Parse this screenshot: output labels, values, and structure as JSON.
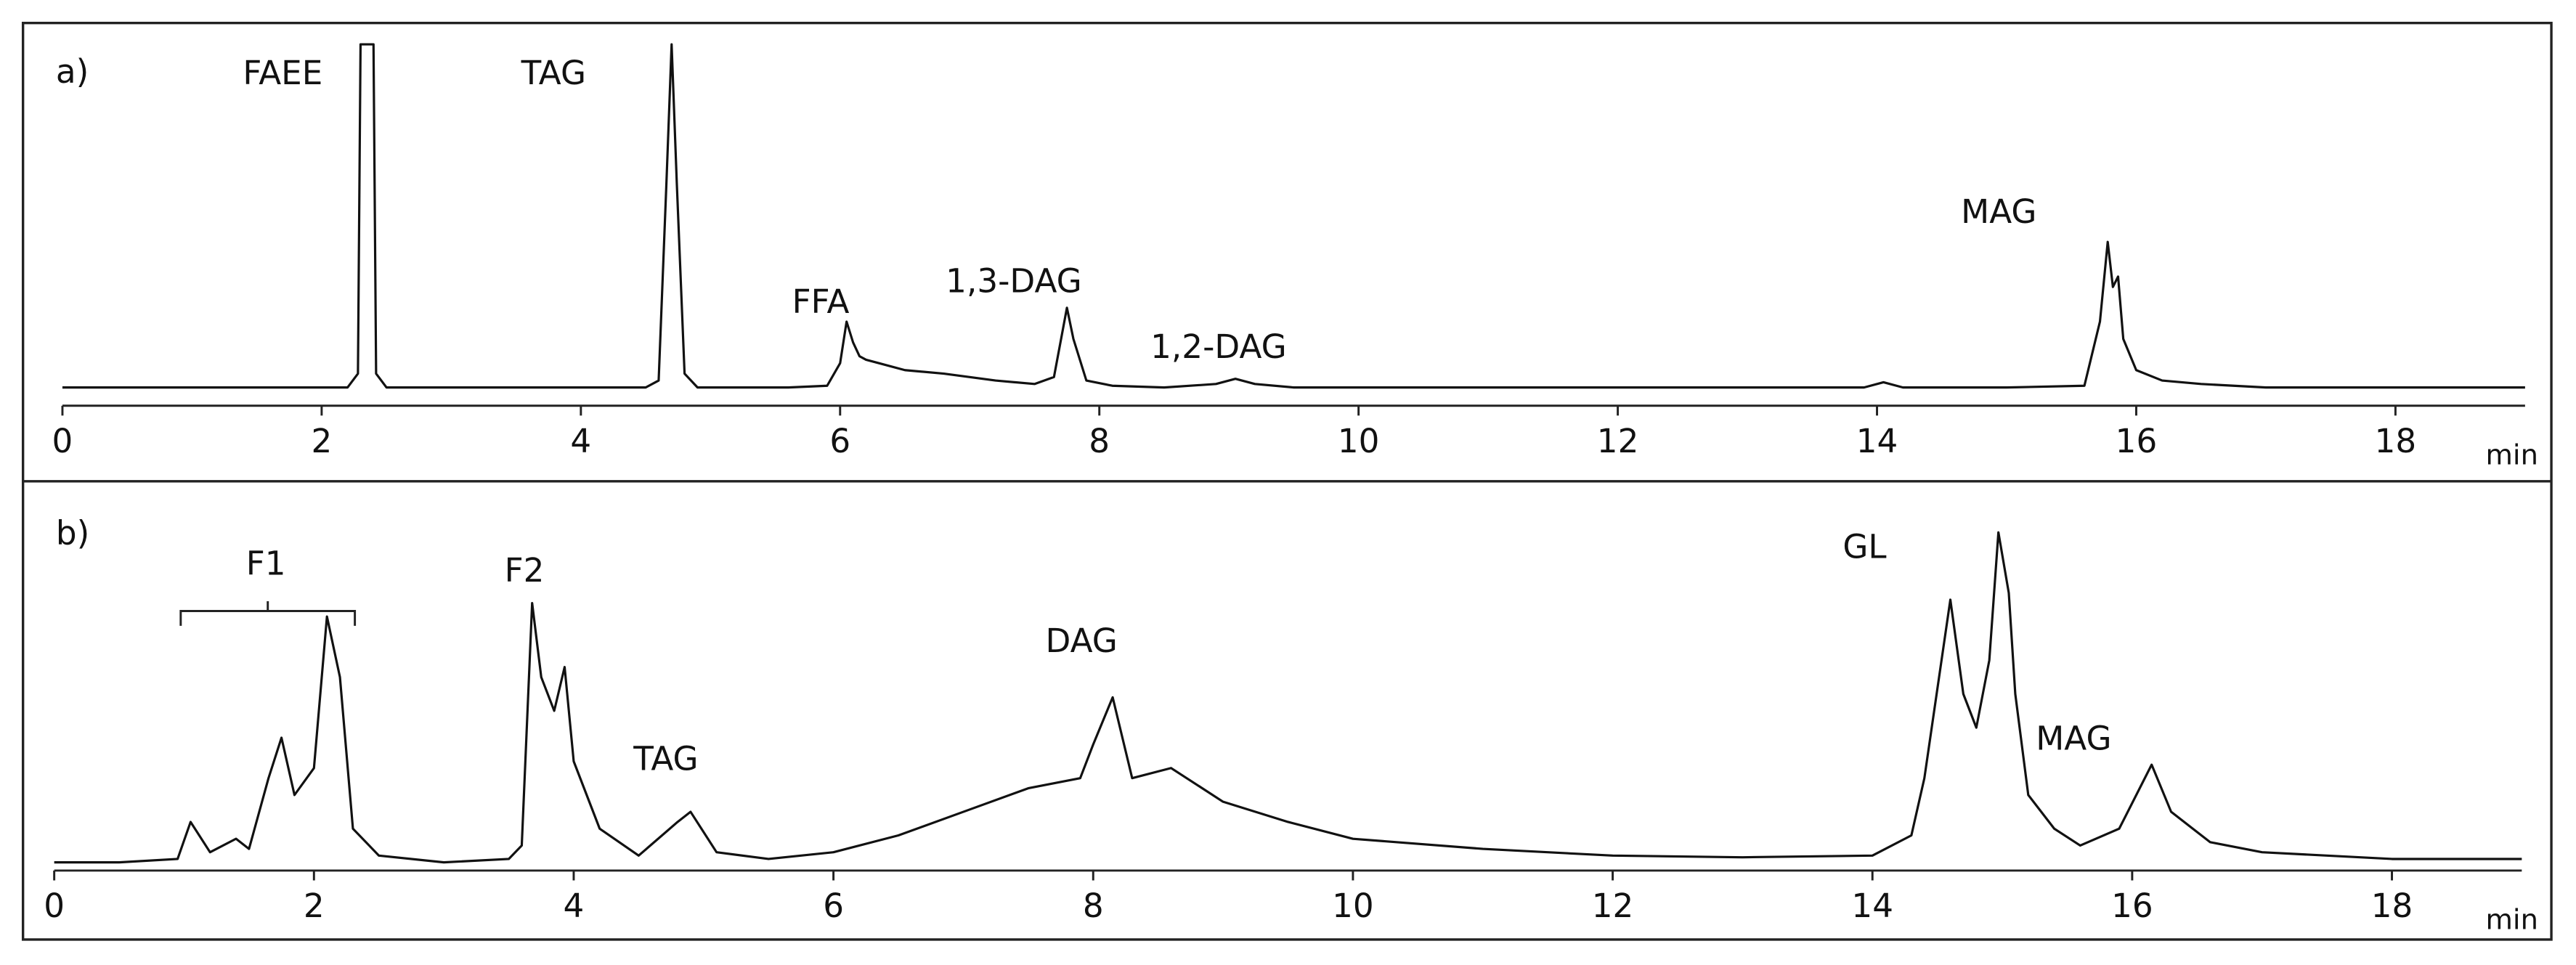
{
  "chart_data": [
    {
      "type": "line",
      "panel_label": "a)",
      "xlabel": "min",
      "xlim": [
        0,
        19
      ],
      "ylim": [
        0,
        100
      ],
      "xticks": [
        0,
        2,
        4,
        6,
        8,
        10,
        12,
        14,
        16,
        18
      ],
      "x": [
        0,
        0.5,
        1,
        1.5,
        2,
        2.2,
        2.28,
        2.3,
        2.4,
        2.42,
        2.5,
        2.7,
        3,
        3.5,
        4,
        4.5,
        4.6,
        4.66,
        4.7,
        4.74,
        4.8,
        4.9,
        5.2,
        5.6,
        5.9,
        6.0,
        6.05,
        6.1,
        6.15,
        6.2,
        6.3,
        6.5,
        6.8,
        7.2,
        7.5,
        7.65,
        7.72,
        7.75,
        7.8,
        7.9,
        8.1,
        8.5,
        8.9,
        9.05,
        9.2,
        9.5,
        10,
        11,
        12,
        13,
        13.9,
        14.05,
        14.2,
        15,
        15.6,
        15.72,
        15.78,
        15.82,
        15.86,
        15.9,
        16.0,
        16.2,
        16.5,
        17,
        18,
        19
      ],
      "values": [
        1,
        1,
        1,
        1,
        1,
        1,
        5,
        100,
        100,
        5,
        1,
        1,
        1,
        1,
        1,
        1,
        3,
        60,
        100,
        60,
        5,
        1,
        1,
        1,
        1.5,
        8,
        20,
        14,
        10,
        9,
        8,
        6,
        5,
        3,
        2,
        4,
        18,
        24,
        15,
        3,
        1.5,
        1,
        2,
        3.5,
        2,
        1,
        1,
        1,
        1,
        1,
        1,
        2.5,
        1,
        1,
        1.5,
        20,
        43,
        30,
        33,
        15,
        6,
        3,
        2,
        1,
        1,
        1
      ],
      "color": "#111111",
      "annotations": [
        {
          "text": "FAEE",
          "x": 1.7,
          "y": 91
        },
        {
          "text": "TAG",
          "x": 3.79,
          "y": 91
        },
        {
          "text": "FFA",
          "x": 5.85,
          "y": 25
        },
        {
          "text": "1,3-DAG",
          "x": 7.34,
          "y": 31
        },
        {
          "text": "1,2-DAG",
          "x": 8.92,
          "y": 12
        },
        {
          "text": "MAG",
          "x": 14.94,
          "y": 51
        }
      ]
    },
    {
      "type": "line",
      "panel_label": "b)",
      "xlabel": "min",
      "xlim": [
        0,
        19
      ],
      "ylim": [
        0,
        100
      ],
      "xticks": [
        0,
        2,
        4,
        6,
        8,
        10,
        12,
        14,
        16,
        18
      ],
      "x": [
        0,
        0.5,
        0.95,
        1.05,
        1.2,
        1.4,
        1.5,
        1.65,
        1.75,
        1.85,
        2.0,
        2.1,
        2.2,
        2.3,
        2.5,
        3.0,
        3.5,
        3.6,
        3.68,
        3.75,
        3.85,
        3.93,
        4.0,
        4.2,
        4.5,
        4.8,
        4.9,
        5.1,
        5.5,
        6.0,
        6.5,
        7.0,
        7.5,
        7.9,
        8.0,
        8.15,
        8.3,
        8.6,
        9.0,
        9.5,
        10,
        11,
        12,
        13,
        14,
        14.3,
        14.4,
        14.6,
        14.7,
        14.8,
        14.9,
        14.97,
        15.05,
        15.1,
        15.2,
        15.4,
        15.6,
        15.9,
        16.15,
        16.3,
        16.6,
        17,
        18,
        19
      ],
      "values": [
        0,
        0,
        1,
        12,
        3,
        7,
        4,
        25,
        37,
        20,
        28,
        73,
        55,
        10,
        2,
        0,
        1,
        5,
        77,
        55,
        45,
        58,
        30,
        10,
        2,
        12,
        15,
        3,
        1,
        3,
        8,
        15,
        22,
        25,
        35,
        49,
        25,
        28,
        18,
        12,
        7,
        4,
        2,
        1.5,
        2,
        8,
        25,
        78,
        50,
        40,
        60,
        98,
        80,
        50,
        20,
        10,
        5,
        10,
        29,
        15,
        6,
        3,
        1,
        1
      ],
      "color": "#111111",
      "annotations": [
        {
          "text": "F1",
          "x": 1.63,
          "y": 88
        },
        {
          "text": "F2",
          "x": 3.62,
          "y": 86
        },
        {
          "text": "TAG",
          "x": 4.71,
          "y": 30
        },
        {
          "text": "DAG",
          "x": 7.91,
          "y": 65
        },
        {
          "text": "GL",
          "x": 13.94,
          "y": 93
        },
        {
          "text": "MAG",
          "x": 15.55,
          "y": 36
        }
      ]
    }
  ]
}
